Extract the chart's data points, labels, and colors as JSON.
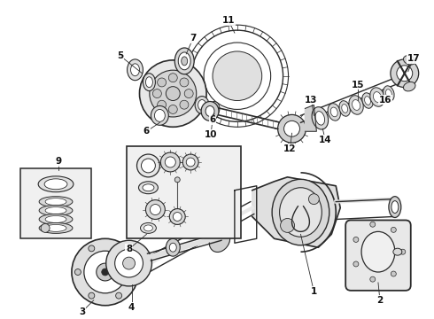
{
  "bg_color": "#ffffff",
  "line_color": "#2a2a2a",
  "lw": 0.8,
  "fig_width": 4.9,
  "fig_height": 3.6,
  "dpi": 100
}
